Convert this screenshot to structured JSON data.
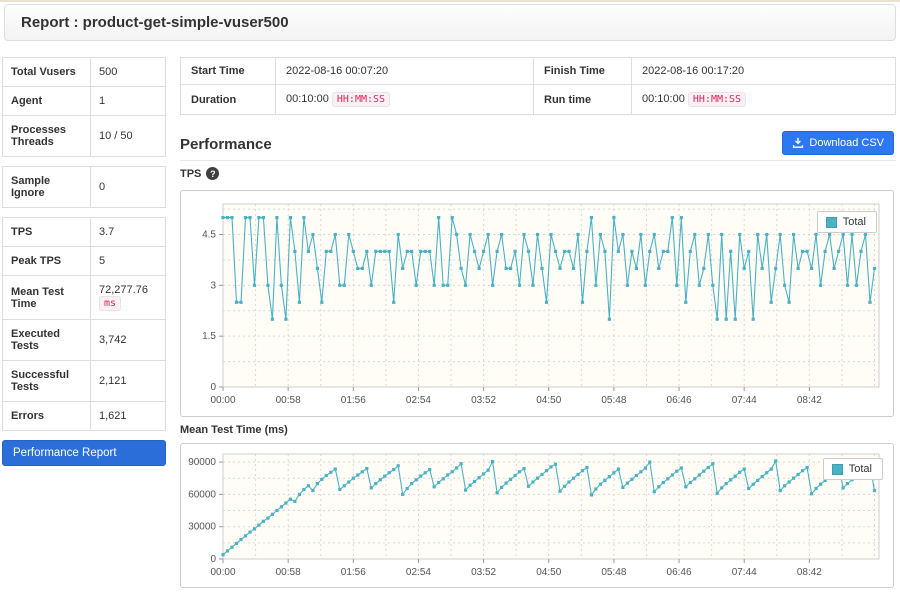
{
  "page": {
    "title": "Report : product-get-simple-vuser500"
  },
  "sidebar": {
    "groups": [
      {
        "rows": [
          {
            "label": "Total Vusers",
            "value": "500"
          },
          {
            "label": "Agent",
            "value": "1"
          },
          {
            "label": "Processes Threads",
            "value": "10 / 50"
          }
        ]
      },
      {
        "rows": [
          {
            "label": "Sample Ignore",
            "value": "0"
          }
        ]
      },
      {
        "rows": [
          {
            "label": "TPS",
            "value": "3.7"
          },
          {
            "label": "Peak TPS",
            "value": "5"
          },
          {
            "label": "Mean Test Time",
            "value": "72,277.76",
            "badge": "ms"
          },
          {
            "label": "Executed Tests",
            "value": "3,742"
          },
          {
            "label": "Successful Tests",
            "value": "2,121"
          },
          {
            "label": "Errors",
            "value": "1,621"
          }
        ]
      }
    ],
    "performance_report_label": "Performance Report"
  },
  "info_table": {
    "start_time_label": "Start Time",
    "start_time": "2022-08-16 00:07:20",
    "finish_time_label": "Finish Time",
    "finish_time": "2022-08-16 00:17:20",
    "duration_label": "Duration",
    "duration": "00:10:00",
    "duration_badge": "HH:MM:SS",
    "run_time_label": "Run time",
    "run_time": "00:10:00",
    "run_time_badge": "HH:MM:SS"
  },
  "performance_section": {
    "title": "Performance",
    "download_csv_label": "Download CSV"
  },
  "chart_data": [
    {
      "type": "line",
      "title": "TPS",
      "series": [
        {
          "name": "Total",
          "values": [
            5,
            5,
            5,
            2.5,
            2.5,
            5,
            5,
            3,
            5,
            5,
            3,
            2,
            5,
            3,
            2,
            5,
            4,
            2.5,
            5,
            4,
            4.5,
            3.5,
            2.5,
            4,
            4,
            4.5,
            3,
            3,
            4.5,
            4,
            3.5,
            3.5,
            4,
            3,
            4,
            4,
            4,
            4,
            2.5,
            4.5,
            3.5,
            4,
            4,
            3,
            4,
            4,
            4,
            3,
            5,
            3,
            3,
            5,
            4.5,
            3.5,
            3,
            4.5,
            4,
            3.5,
            4,
            4.5,
            3,
            4,
            4.5,
            3.5,
            3.5,
            4,
            3,
            4.5,
            4,
            3,
            4.5,
            3.5,
            2.5,
            4.5,
            4,
            3.5,
            4,
            4,
            3.5,
            4.5,
            2.5,
            4,
            5,
            3,
            4.5,
            4,
            2,
            5,
            4,
            4.5,
            3,
            4,
            3.5,
            4.5,
            3,
            4,
            4.5,
            3.5,
            4,
            4,
            5,
            3,
            5,
            2.5,
            4,
            4.5,
            3,
            3.5,
            4.5,
            3,
            2,
            4.5,
            2,
            4,
            2,
            4.5,
            3.5,
            4,
            2,
            4.5,
            3.5,
            4.5,
            2.5,
            3.5,
            4.5,
            3,
            2.5,
            4.5,
            3.5,
            4,
            4,
            3.5,
            4.5,
            3,
            4,
            4.5,
            3.5,
            4,
            4.5,
            3,
            4.5,
            3,
            4,
            4.5,
            2.5,
            3.5
          ]
        }
      ],
      "x_start_seconds": 0,
      "x_step_seconds": 4,
      "xlim_seconds": [
        0,
        584
      ],
      "ylim": [
        0,
        5.4
      ],
      "yticks": [
        {
          "v": 0,
          "label": "0"
        },
        {
          "v": 1.5,
          "label": "1.5"
        },
        {
          "v": 3,
          "label": "3"
        },
        {
          "v": 4.5,
          "label": "4.5"
        }
      ],
      "y_minor_step": 0.75,
      "xticks": [
        {
          "s": 0,
          "label": "00:00"
        },
        {
          "s": 58,
          "label": "00:58"
        },
        {
          "s": 116,
          "label": "01:56"
        },
        {
          "s": 174,
          "label": "02:54"
        },
        {
          "s": 232,
          "label": "03:52"
        },
        {
          "s": 290,
          "label": "04:50"
        },
        {
          "s": 348,
          "label": "05:48"
        },
        {
          "s": 406,
          "label": "06:46"
        },
        {
          "s": 464,
          "label": "07:44"
        },
        {
          "s": 522,
          "label": "08:42"
        }
      ],
      "x_minor_step_seconds": 29,
      "grid": "dashed",
      "legend_position": "top-right",
      "colors": {
        "series": "#4bb2c5",
        "plot_bg": "#fffdf6",
        "grid": "#d8d8d8",
        "plot_border": "#cfcfcf"
      }
    },
    {
      "type": "line",
      "title": "Mean Test Time (ms)",
      "series": [
        {
          "name": "Total",
          "values": [
            4000,
            7500,
            11000,
            14500,
            18000,
            21500,
            25000,
            28000,
            31500,
            35000,
            38000,
            41500,
            45000,
            48500,
            52000,
            55500,
            53500,
            60000,
            64500,
            68000,
            63500,
            70000,
            74000,
            77500,
            80500,
            83500,
            64500,
            68000,
            71500,
            75000,
            78000,
            81000,
            84000,
            66000,
            70000,
            73500,
            77000,
            80000,
            83000,
            86500,
            60000,
            65500,
            70000,
            73500,
            77000,
            80000,
            83000,
            67000,
            71000,
            74500,
            78000,
            81000,
            84500,
            88500,
            64000,
            68500,
            72000,
            75500,
            79000,
            82500,
            90500,
            61500,
            66500,
            70500,
            74000,
            77500,
            81000,
            84000,
            67500,
            71500,
            75000,
            78500,
            82000,
            85500,
            88000,
            63000,
            67500,
            71500,
            75000,
            78500,
            82000,
            85000,
            59500,
            65000,
            69500,
            73000,
            76500,
            80000,
            83500,
            66500,
            70500,
            74000,
            77500,
            81000,
            84500,
            90000,
            62500,
            67000,
            71000,
            74500,
            78000,
            81500,
            84500,
            67000,
            71000,
            74500,
            78000,
            81500,
            85000,
            88500,
            61000,
            66000,
            70000,
            73500,
            77000,
            80500,
            83500,
            65500,
            69500,
            73000,
            76500,
            80000,
            83500,
            91000,
            63500,
            68000,
            71500,
            75000,
            78500,
            82000,
            85000,
            60500,
            65500,
            69500,
            73000,
            76500,
            80000,
            88500,
            66000,
            70000,
            73500,
            77000,
            80500,
            84000,
            87000,
            63500
          ]
        }
      ],
      "x_start_seconds": 0,
      "x_step_seconds": 4,
      "xlim_seconds": [
        0,
        584
      ],
      "ylim": [
        0,
        97500
      ],
      "yticks": [
        {
          "v": 0,
          "label": "0"
        },
        {
          "v": 30000,
          "label": "30000"
        },
        {
          "v": 60000,
          "label": "60000"
        },
        {
          "v": 90000,
          "label": "90000"
        }
      ],
      "y_minor_step": 15000,
      "xticks": [
        {
          "s": 0,
          "label": "00:00"
        },
        {
          "s": 58,
          "label": "00:58"
        },
        {
          "s": 116,
          "label": "01:56"
        },
        {
          "s": 174,
          "label": "02:54"
        },
        {
          "s": 232,
          "label": "03:52"
        },
        {
          "s": 290,
          "label": "04:50"
        },
        {
          "s": 348,
          "label": "05:48"
        },
        {
          "s": 406,
          "label": "06:46"
        },
        {
          "s": 464,
          "label": "07:44"
        },
        {
          "s": 522,
          "label": "08:42"
        }
      ],
      "x_minor_step_seconds": 29,
      "grid": "dashed",
      "legend_position": "top-right",
      "colors": {
        "series": "#4bb2c5",
        "plot_bg": "#fffdf6",
        "grid": "#d8d8d8",
        "plot_border": "#cfcfcf"
      }
    }
  ]
}
